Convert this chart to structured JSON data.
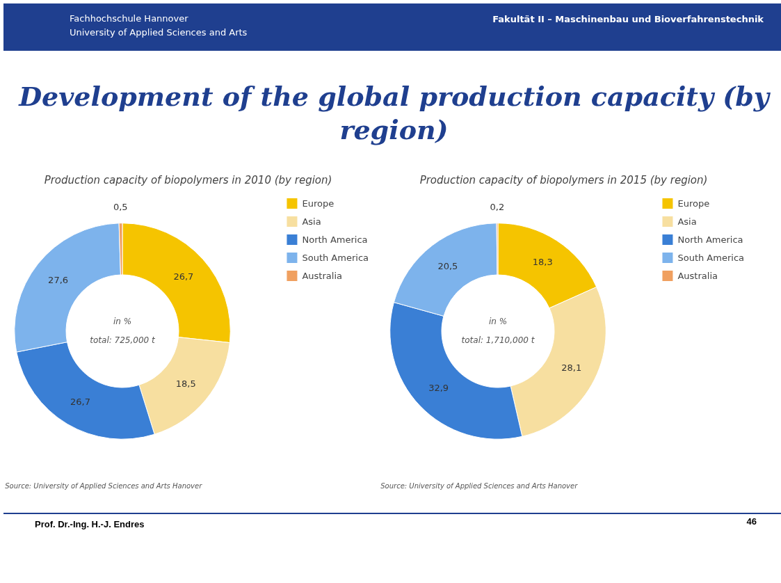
{
  "chart_data": [
    {
      "type": "other",
      "title": "Development of the global production capacity (by region)",
      "annotations": [
        "Fachhochschule Hannover",
        "University of Applied Sciences and Arts",
        "Fakultät II – Maschinenbau und Bioverfahrenstechnik",
        "Prof. Dr.-Ing. H.-J. Endres",
        "46"
      ]
    },
    {
      "type": "donut",
      "title": "Production capacity of biopolymers in 2010 (by region)",
      "categories": [
        "Europe",
        "Asia",
        "North America",
        "South America",
        "Australia"
      ],
      "values": [
        26.7,
        18.5,
        26.7,
        27.6,
        0.5
      ],
      "colors": [
        "#f5c400",
        "#f7dfa0",
        "#3a7fd5",
        "#7db3ec",
        "#f0a060"
      ],
      "value_labels": [
        "26,7",
        "18,5",
        "26,7",
        "27,6",
        "0,5"
      ],
      "legend": "top right",
      "annotations": [
        "in %",
        "total: 725,000 t",
        "Source: University of Applied Sciences and Arts Hanover"
      ]
    },
    {
      "type": "donut",
      "title": "Production capacity of biopolymers in 2015 (by region)",
      "categories": [
        "Europe",
        "Asia",
        "North America",
        "South America",
        "Australia"
      ],
      "values": [
        18.3,
        28.1,
        32.9,
        20.5,
        0.2
      ],
      "colors": [
        "#f5c400",
        "#f7dfa0",
        "#3a7fd5",
        "#7db3ec",
        "#f0a060"
      ],
      "value_labels": [
        "18,3",
        "28,1",
        "32,9",
        "20,5",
        "0,2"
      ],
      "legend": "top right",
      "annotations": [
        "in %",
        "total: 1,710,000 t",
        "Source: University of Applied Sciences and Arts Hanover"
      ]
    }
  ]
}
